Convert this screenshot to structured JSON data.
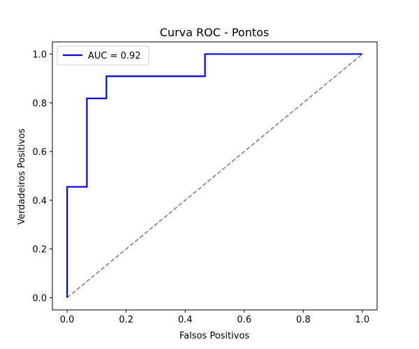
{
  "chart_data": {
    "type": "line",
    "title": "Curva ROC - Pontos",
    "xlabel": "Falsos Positivos",
    "ylabel": "Verdadeiros Positivos",
    "xlim": [
      -0.05,
      1.05
    ],
    "ylim": [
      -0.05,
      1.05
    ],
    "x_ticks": [
      "0.0",
      "0.2",
      "0.4",
      "0.6",
      "0.8",
      "1.0"
    ],
    "y_ticks": [
      "0.0",
      "0.2",
      "0.4",
      "0.6",
      "0.8",
      "1.0"
    ],
    "grid": false,
    "legend_position": "upper-left",
    "series": [
      {
        "name": "AUC = 0.92",
        "color": "#0000dd",
        "style": "step",
        "x": [
          0.0,
          0.0,
          0.067,
          0.067,
          0.133,
          0.133,
          0.467,
          0.467,
          1.0
        ],
        "y": [
          0.0,
          0.455,
          0.455,
          0.818,
          0.818,
          0.909,
          0.909,
          1.0,
          1.0
        ]
      },
      {
        "color": "#808080",
        "style": "dashed",
        "x": [
          0.0,
          1.0
        ],
        "y": [
          0.0,
          1.0
        ]
      }
    ]
  }
}
